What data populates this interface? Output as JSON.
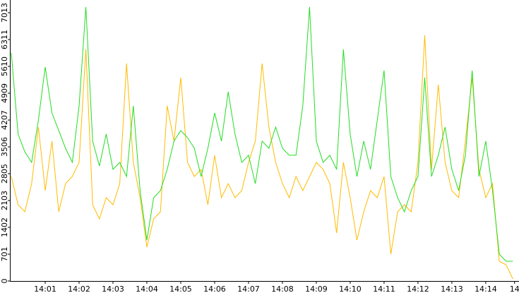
{
  "chart_data": {
    "type": "line",
    "x": [
      0,
      0.2,
      0.4,
      0.6,
      0.8,
      1,
      1.2,
      1.4,
      1.6,
      1.8,
      2,
      2.2,
      2.4,
      2.6,
      2.8,
      3,
      3.2,
      3.4,
      3.6,
      3.8,
      4,
      4.2,
      4.4,
      4.6,
      4.8,
      5,
      5.2,
      5.4,
      5.6,
      5.8,
      6,
      6.2,
      6.4,
      6.6,
      6.8,
      7,
      7.2,
      7.4,
      7.6,
      7.8,
      8,
      8.2,
      8.4,
      8.6,
      8.8,
      9,
      9.2,
      9.4,
      9.6,
      9.8,
      10,
      10.2,
      10.4,
      10.6,
      10.8,
      11,
      11.2,
      11.4,
      11.6,
      11.8,
      12,
      12.2,
      12.4,
      12.6,
      12.8,
      13,
      13.2,
      13.4,
      13.6,
      13.8,
      14,
      14.2,
      14.4,
      14.6,
      14.8
    ],
    "series": [
      {
        "color": "#ffbb00",
        "values": [
          2732,
          1994,
          1809,
          2547,
          4024,
          2363,
          3655,
          1809,
          2547,
          2732,
          3101,
          6055,
          1994,
          1624,
          2178,
          1994,
          2547,
          5686,
          3101,
          2178,
          886,
          1624,
          1809,
          4578,
          3655,
          5316,
          3101,
          2732,
          2917,
          1994,
          3286,
          2178,
          2547,
          2178,
          2363,
          3101,
          3655,
          5686,
          4024,
          3101,
          2547,
          2178,
          2732,
          2363,
          2732,
          3101,
          2917,
          2547,
          1255,
          3101,
          2178,
          1071,
          1809,
          2363,
          2178,
          2732,
          701,
          1809,
          1994,
          1809,
          3101,
          6424,
          2917,
          5132,
          3101,
          2363,
          2178,
          3655,
          5316,
          2917,
          2178,
          2547,
          517,
          425,
          55
        ]
      },
      {
        "color": "#22dd22",
        "values": [
          5963,
          3840,
          3378,
          3101,
          4209,
          5593,
          4393,
          3932,
          3470,
          3101,
          4578,
          7162,
          3655,
          3009,
          3840,
          2917,
          3101,
          2732,
          4578,
          2363,
          1071,
          2178,
          2363,
          2917,
          3655,
          3932,
          3747,
          3470,
          2732,
          3470,
          4393,
          3655,
          4947,
          3840,
          3101,
          3286,
          2547,
          3655,
          3470,
          4024,
          3470,
          3286,
          3286,
          4578,
          7162,
          3655,
          3101,
          3286,
          2917,
          6055,
          3840,
          2732,
          3655,
          2917,
          4209,
          5501,
          2732,
          2178,
          1809,
          2363,
          2732,
          5316,
          2732,
          3286,
          4024,
          2917,
          2363,
          3286,
          5501,
          2732,
          3655,
          2363,
          701,
          517,
          517
        ]
      }
    ],
    "xlim": [
      0,
      14.96
    ],
    "xticks": [
      {
        "value": 1,
        "label": "14:01"
      },
      {
        "value": 2,
        "label": "14:02"
      },
      {
        "value": 3,
        "label": "14:03"
      },
      {
        "value": 4,
        "label": "14:04"
      },
      {
        "value": 5,
        "label": "14:05"
      },
      {
        "value": 6,
        "label": "14:06"
      },
      {
        "value": 7,
        "label": "14:07"
      },
      {
        "value": 8,
        "label": "14:08"
      },
      {
        "value": 9,
        "label": "14:09"
      },
      {
        "value": 10,
        "label": "14:10"
      },
      {
        "value": 11,
        "label": "14:11"
      },
      {
        "value": 12,
        "label": "14:12"
      },
      {
        "value": 13,
        "label": "14:13"
      },
      {
        "value": 14,
        "label": "14:14"
      },
      {
        "value": 14.85,
        "label": "14"
      }
    ],
    "ylim": [
      0,
      7345
    ],
    "yticks": [
      0,
      701,
      1402,
      2103,
      2805,
      3506,
      4207,
      4909,
      5610,
      6311,
      7013
    ]
  }
}
